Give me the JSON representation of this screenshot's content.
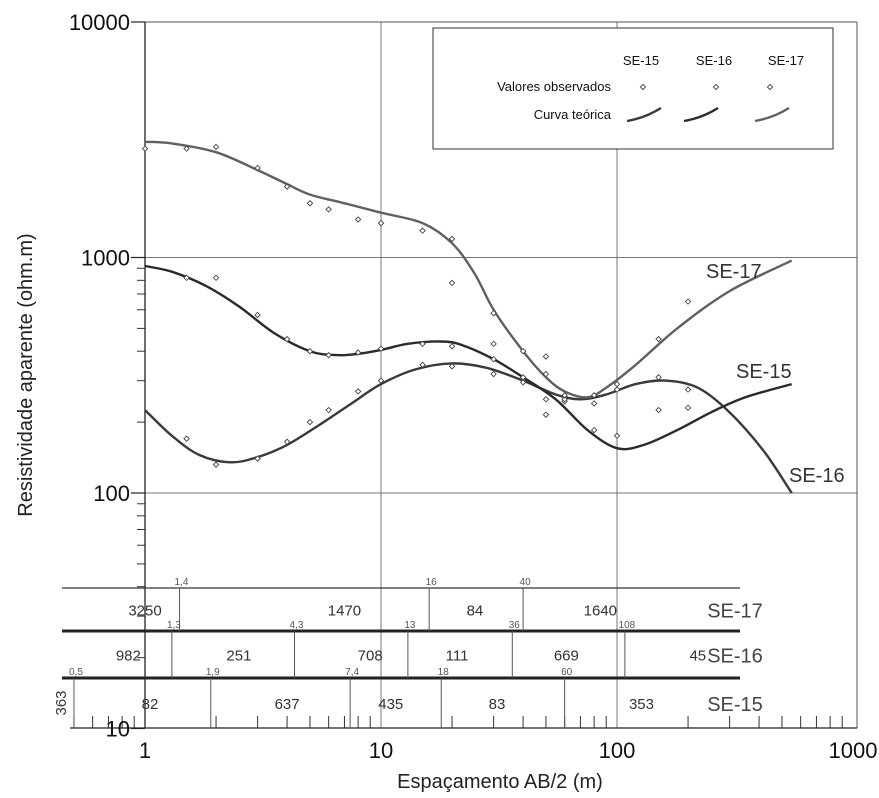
{
  "chart_data": {
    "type": "scatter",
    "xlabel": "Espaçamento AB/2 (m)",
    "ylabel": "Resistividade aparente (ohm.m)",
    "x_scale": "log",
    "y_scale": "log",
    "xlim": [
      0.5,
      1000
    ],
    "ylim": [
      10,
      10000
    ],
    "x_tick_labels": [
      "1",
      "10",
      "100",
      "1000"
    ],
    "y_tick_labels": [
      "10",
      "100",
      "1000",
      "10000"
    ],
    "grid": "major",
    "legend": {
      "position": "top-right",
      "columns": [
        "SE-15",
        "SE-16",
        "SE-17"
      ],
      "rows": [
        "Valores observados",
        "Curva teórica"
      ]
    },
    "series": [
      {
        "name": "SE-15",
        "color": "#3a3a3a",
        "observed": [
          [
            1.5,
            170
          ],
          [
            2,
            132
          ],
          [
            3,
            140
          ],
          [
            4,
            165
          ],
          [
            5,
            200
          ],
          [
            6,
            225
          ],
          [
            8,
            270
          ],
          [
            10,
            300
          ],
          [
            15,
            350
          ],
          [
            20,
            345
          ],
          [
            30,
            320
          ],
          [
            40,
            295
          ],
          [
            50,
            250
          ],
          [
            60,
            245
          ],
          [
            80,
            240
          ],
          [
            100,
            275
          ],
          [
            150,
            225
          ],
          [
            200,
            230
          ]
        ],
        "curve": [
          [
            1,
            225
          ],
          [
            1.3,
            175
          ],
          [
            1.7,
            145
          ],
          [
            2.3,
            135
          ],
          [
            3,
            142
          ],
          [
            4,
            160
          ],
          [
            5.5,
            195
          ],
          [
            7.5,
            240
          ],
          [
            10,
            290
          ],
          [
            14,
            335
          ],
          [
            20,
            355
          ],
          [
            28,
            340
          ],
          [
            40,
            300
          ],
          [
            55,
            262
          ],
          [
            70,
            250
          ],
          [
            90,
            262
          ],
          [
            120,
            290
          ],
          [
            160,
            300
          ],
          [
            220,
            280
          ],
          [
            300,
            220
          ],
          [
            420,
            150
          ],
          [
            550,
            100
          ]
        ]
      },
      {
        "name": "SE-16",
        "color": "#2a2a2a",
        "observed": [
          [
            1.5,
            820
          ],
          [
            2,
            820
          ],
          [
            3,
            570
          ],
          [
            4,
            450
          ],
          [
            5,
            400
          ],
          [
            6,
            385
          ],
          [
            8,
            395
          ],
          [
            10,
            410
          ],
          [
            15,
            430
          ],
          [
            20,
            420
          ],
          [
            30,
            370
          ],
          [
            40,
            310
          ],
          [
            50,
            215
          ],
          [
            60,
            250
          ],
          [
            80,
            185
          ],
          [
            100,
            175
          ],
          [
            150,
            310
          ],
          [
            200,
            275
          ]
        ],
        "curve": [
          [
            1,
            920
          ],
          [
            1.3,
            870
          ],
          [
            1.8,
            760
          ],
          [
            2.5,
            620
          ],
          [
            3.5,
            480
          ],
          [
            5,
            400
          ],
          [
            6.5,
            385
          ],
          [
            8,
            390
          ],
          [
            10,
            405
          ],
          [
            13,
            430
          ],
          [
            18,
            440
          ],
          [
            22,
            425
          ],
          [
            30,
            370
          ],
          [
            40,
            310
          ],
          [
            55,
            250
          ],
          [
            75,
            185
          ],
          [
            100,
            155
          ],
          [
            130,
            160
          ],
          [
            180,
            185
          ],
          [
            250,
            220
          ],
          [
            350,
            255
          ],
          [
            550,
            290
          ]
        ]
      },
      {
        "name": "SE-17",
        "color": "#606060",
        "observed": [
          [
            1,
            2900
          ],
          [
            1.5,
            2900
          ],
          [
            2,
            2950
          ],
          [
            3,
            2400
          ],
          [
            4,
            2000
          ],
          [
            5,
            1700
          ],
          [
            6,
            1600
          ],
          [
            8,
            1450
          ],
          [
            10,
            1400
          ],
          [
            15,
            1300
          ],
          [
            20,
            1200
          ],
          [
            20,
            780
          ],
          [
            30,
            580
          ],
          [
            30,
            430
          ],
          [
            40,
            400
          ],
          [
            50,
            380
          ],
          [
            50,
            320
          ],
          [
            60,
            260
          ],
          [
            80,
            260
          ],
          [
            100,
            290
          ],
          [
            150,
            450
          ],
          [
            200,
            650
          ]
        ],
        "curve": [
          [
            1,
            3100
          ],
          [
            1.3,
            3050
          ],
          [
            2,
            2800
          ],
          [
            3,
            2350
          ],
          [
            4,
            2050
          ],
          [
            5,
            1850
          ],
          [
            7,
            1700
          ],
          [
            10,
            1550
          ],
          [
            15,
            1400
          ],
          [
            20,
            1150
          ],
          [
            25,
            850
          ],
          [
            30,
            600
          ],
          [
            40,
            400
          ],
          [
            50,
            310
          ],
          [
            60,
            270
          ],
          [
            75,
            255
          ],
          [
            90,
            280
          ],
          [
            120,
            350
          ],
          [
            180,
            500
          ],
          [
            300,
            720
          ],
          [
            550,
            970
          ]
        ]
      }
    ],
    "curve_labels": [
      "SE-17",
      "SE-15",
      "SE-16"
    ],
    "layer_models": [
      {
        "name": "SE-17",
        "resistivities": [
          "3250",
          "1470",
          "84",
          "1640"
        ],
        "depths": [
          "1,4",
          "16",
          "40"
        ],
        "depth_values": [
          1.4,
          16,
          40
        ],
        "resistivity_positions": [
          1.0,
          7.0,
          25.0,
          85.0
        ]
      },
      {
        "name": "SE-16",
        "resistivities": [
          "982",
          "251",
          "708",
          "111",
          "669",
          "45"
        ],
        "depths": [
          "1,3",
          "4,3",
          "13",
          "36",
          "108"
        ],
        "depth_values": [
          1.3,
          4.3,
          13,
          36,
          108
        ],
        "resistivity_positions": [
          0.85,
          2.5,
          9.0,
          21.0,
          61.0,
          220.0
        ]
      },
      {
        "name": "SE-15",
        "resistivities": [
          "363",
          "82",
          "637",
          "435",
          "83",
          "353"
        ],
        "depths": [
          "0,5",
          "1,9",
          "7,4",
          "18",
          "60"
        ],
        "depth_values": [
          0.5,
          1.9,
          7.4,
          18,
          60
        ],
        "resistivity_positions": [
          0.45,
          1.05,
          4.0,
          11.0,
          31.0,
          127.0
        ]
      }
    ]
  }
}
